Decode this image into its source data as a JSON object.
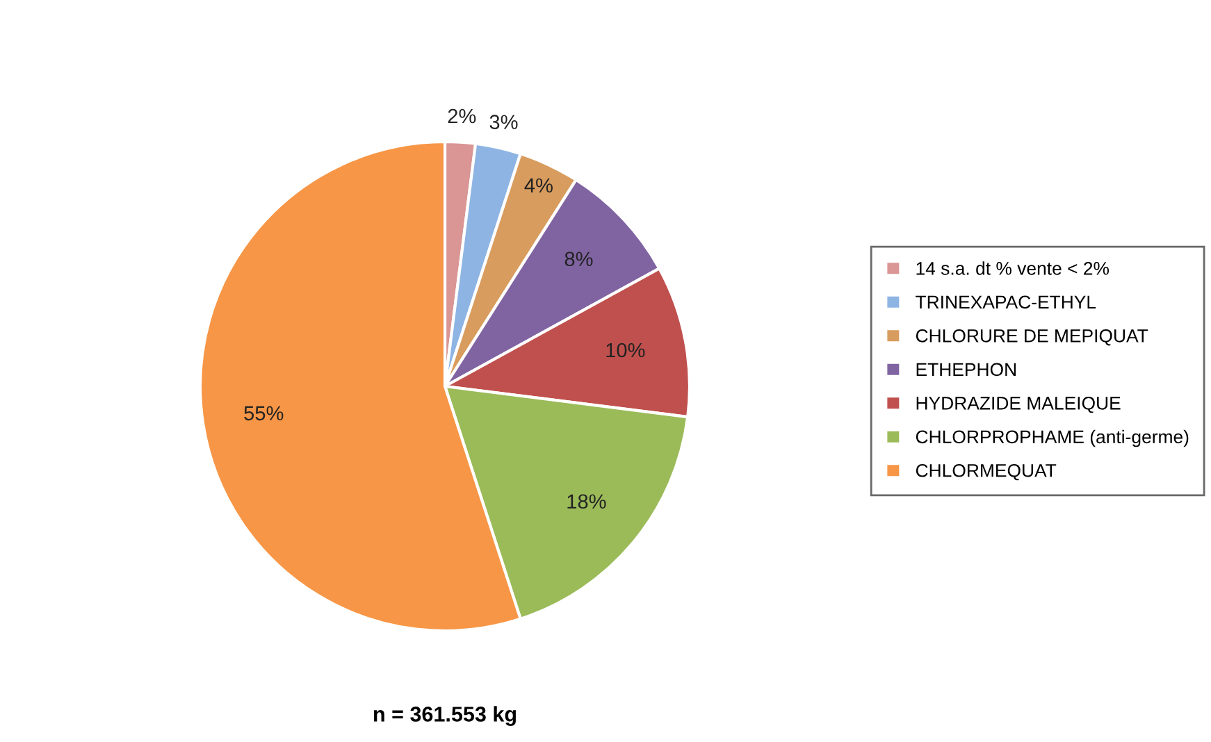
{
  "chart_data": {
    "type": "pie",
    "categories": [
      "14 s.a. dt % vente < 2%",
      "TRINEXAPAC-ETHYL",
      "CHLORURE DE MEPIQUAT",
      "ETHEPHON",
      "HYDRAZIDE MALEIQUE",
      "CHLORPROPHAME (anti-germe)",
      "CHLORMEQUAT"
    ],
    "values": [
      2,
      3,
      4,
      8,
      10,
      18,
      55
    ],
    "colors": [
      "#d99694",
      "#8eb4e3",
      "#d89c5e",
      "#8064a2",
      "#c0504d",
      "#9bbb59",
      "#f79646"
    ],
    "value_labels": [
      "2%",
      "3%",
      "4%",
      "8%",
      "10%",
      "18%",
      "55%"
    ],
    "legend": "right",
    "annotations": [
      "n = 361.553 kg"
    ]
  }
}
